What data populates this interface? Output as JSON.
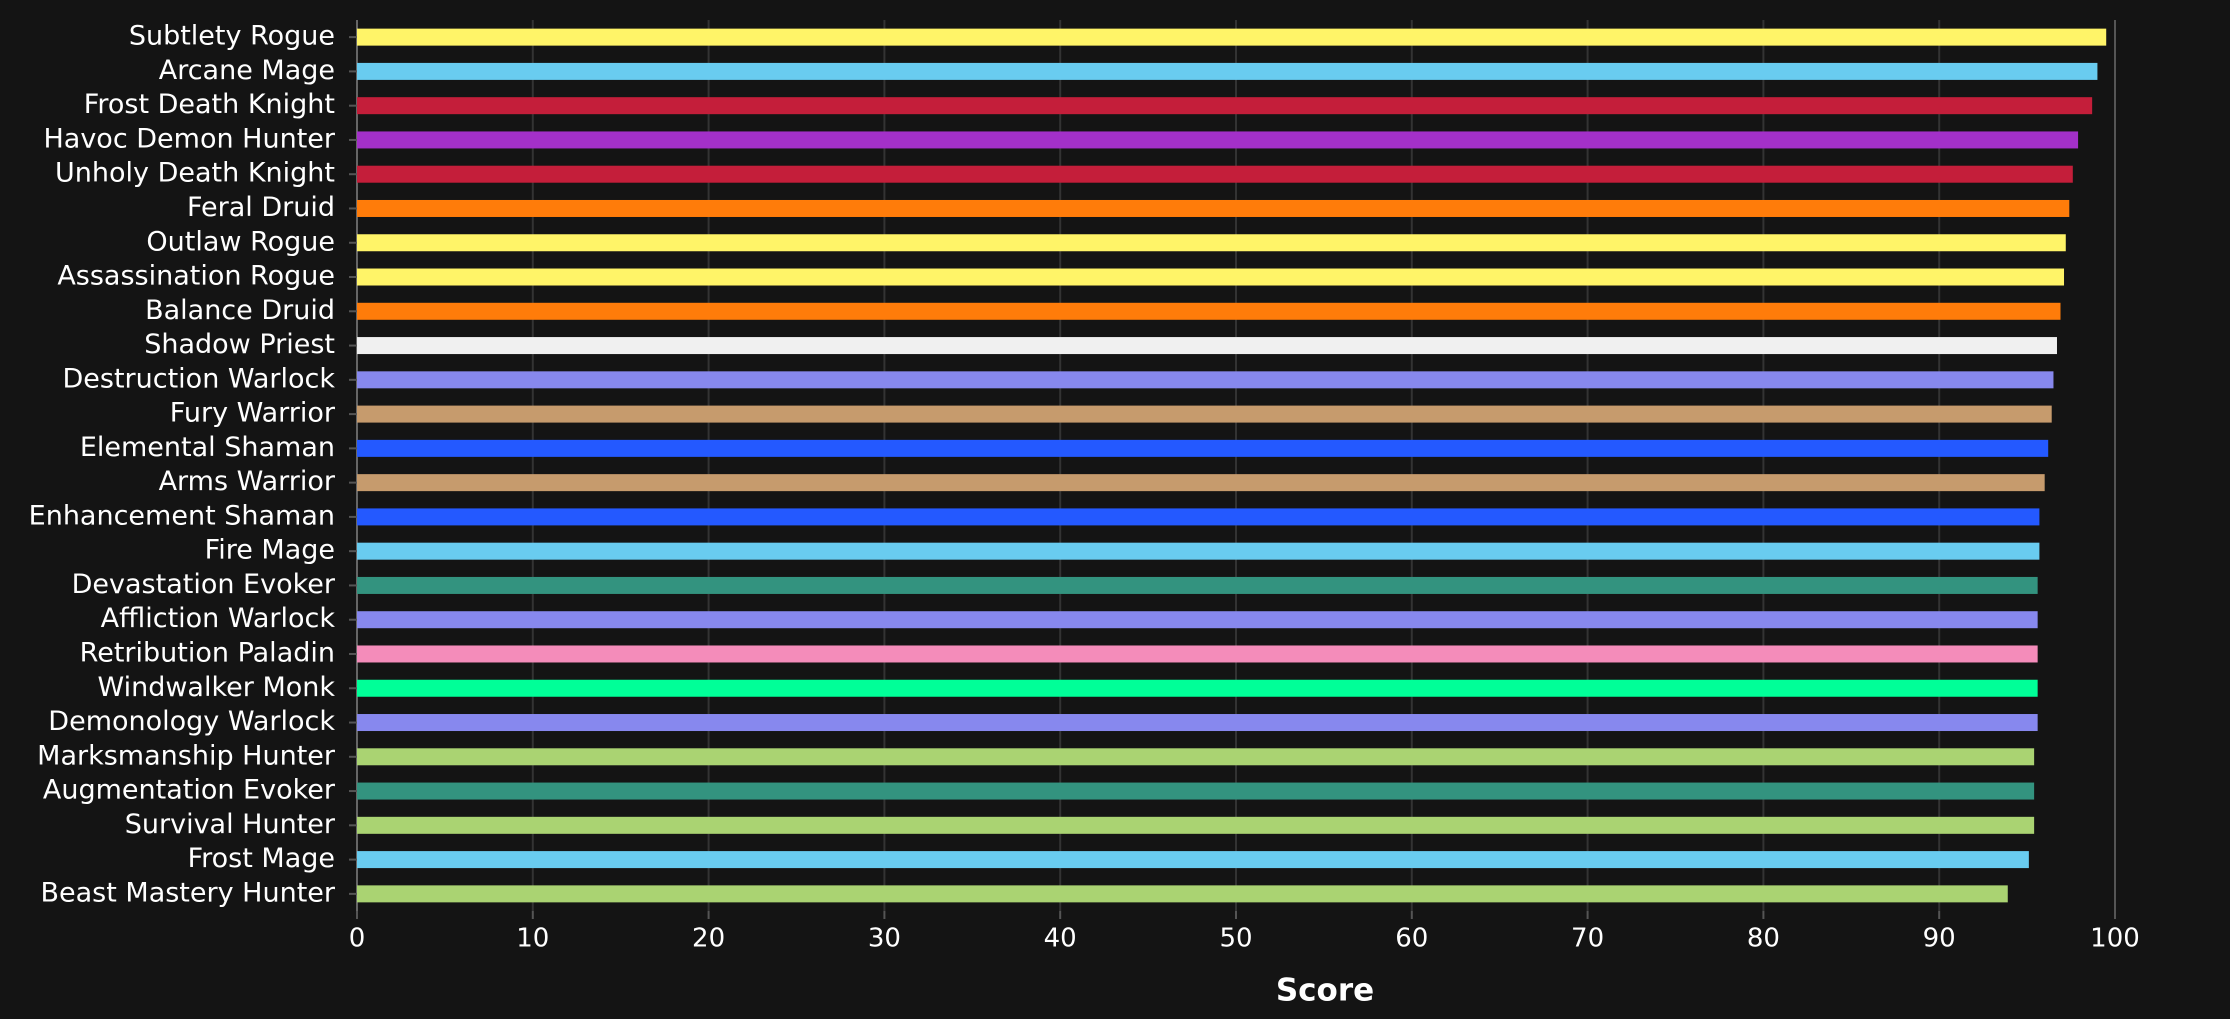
{
  "chart_data": {
    "type": "bar",
    "orientation": "horizontal",
    "xlabel": "Score",
    "categories": [
      "Subtlety Rogue",
      "Arcane Mage",
      "Frost Death Knight",
      "Havoc Demon Hunter",
      "Unholy Death Knight",
      "Feral Druid",
      "Outlaw Rogue",
      "Assassination Rogue",
      "Balance Druid",
      "Shadow Priest",
      "Destruction Warlock",
      "Fury Warrior",
      "Elemental Shaman",
      "Arms Warrior",
      "Enhancement Shaman",
      "Fire Mage",
      "Devastation Evoker",
      "Affliction Warlock",
      "Retribution Paladin",
      "Windwalker Monk",
      "Demonology Warlock",
      "Marksmanship Hunter",
      "Augmentation Evoker",
      "Survival Hunter",
      "Frost Mage",
      "Beast Mastery Hunter"
    ],
    "values": [
      99.5,
      99.0,
      98.7,
      97.9,
      97.6,
      97.4,
      97.2,
      97.1,
      96.9,
      96.7,
      96.5,
      96.4,
      96.2,
      96.0,
      95.7,
      95.7,
      95.6,
      95.6,
      95.6,
      95.6,
      95.6,
      95.4,
      95.4,
      95.4,
      95.1,
      93.9
    ],
    "colors": [
      "#fff468",
      "#69ccf0",
      "#c41e3a",
      "#a330c9",
      "#c41e3a",
      "#ff7c0a",
      "#fff468",
      "#fff468",
      "#ff7c0a",
      "#f0f0f0",
      "#8788ee",
      "#c69b6d",
      "#2459ff",
      "#c69b6d",
      "#2459ff",
      "#69ccf0",
      "#33937f",
      "#8788ee",
      "#f48cba",
      "#00ff98",
      "#8788ee",
      "#aad372",
      "#33937f",
      "#aad372",
      "#69ccf0",
      "#aad372"
    ],
    "xlim": [
      0,
      100
    ],
    "xticks": [
      0,
      10,
      20,
      30,
      40,
      50,
      60,
      70,
      80,
      90,
      100
    ],
    "grid": true
  }
}
